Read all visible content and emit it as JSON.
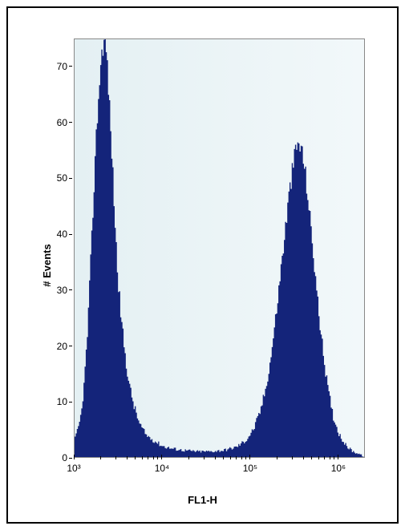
{
  "histogram_chart": {
    "type": "histogram",
    "xaxis": {
      "label": "FL1-H",
      "scale": "log",
      "lim": [
        1000,
        2000000
      ],
      "major_ticks": [
        1000,
        10000,
        100000,
        1000000
      ],
      "major_tick_labels": [
        "10³",
        "10⁴",
        "10⁵",
        "10⁶"
      ],
      "label_fontsize": 13,
      "tick_fontsize": 12
    },
    "yaxis": {
      "label": "# Events",
      "scale": "linear",
      "lim": [
        0,
        75
      ],
      "ticks": [
        0,
        10,
        20,
        30,
        40,
        50,
        60,
        70
      ],
      "tick_labels": [
        "0",
        "10",
        "20",
        "30",
        "40",
        "50",
        "60",
        "70"
      ],
      "label_fontsize": 13,
      "tick_fontsize": 12
    },
    "series": {
      "fill_color": "#14247a",
      "stroke_color": "#14247a",
      "bins": [
        {
          "x": 1000,
          "y": 3
        },
        {
          "x": 1100,
          "y": 5
        },
        {
          "x": 1200,
          "y": 8
        },
        {
          "x": 1300,
          "y": 14
        },
        {
          "x": 1400,
          "y": 22
        },
        {
          "x": 1500,
          "y": 32
        },
        {
          "x": 1600,
          "y": 42
        },
        {
          "x": 1700,
          "y": 52
        },
        {
          "x": 1800,
          "y": 60
        },
        {
          "x": 1900,
          "y": 66
        },
        {
          "x": 2000,
          "y": 71
        },
        {
          "x": 2100,
          "y": 74
        },
        {
          "x": 2200,
          "y": 75
        },
        {
          "x": 2300,
          "y": 73
        },
        {
          "x": 2400,
          "y": 69
        },
        {
          "x": 2500,
          "y": 63
        },
        {
          "x": 2700,
          "y": 53
        },
        {
          "x": 2900,
          "y": 42
        },
        {
          "x": 3100,
          "y": 33
        },
        {
          "x": 3400,
          "y": 25
        },
        {
          "x": 3800,
          "y": 18
        },
        {
          "x": 4200,
          "y": 13
        },
        {
          "x": 4800,
          "y": 9
        },
        {
          "x": 5500,
          "y": 6
        },
        {
          "x": 6500,
          "y": 4
        },
        {
          "x": 8000,
          "y": 3
        },
        {
          "x": 10000,
          "y": 2
        },
        {
          "x": 13000,
          "y": 1.5
        },
        {
          "x": 18000,
          "y": 1.2
        },
        {
          "x": 25000,
          "y": 1
        },
        {
          "x": 35000,
          "y": 1
        },
        {
          "x": 50000,
          "y": 1.2
        },
        {
          "x": 70000,
          "y": 1.8
        },
        {
          "x": 90000,
          "y": 3
        },
        {
          "x": 110000,
          "y": 5
        },
        {
          "x": 130000,
          "y": 8
        },
        {
          "x": 150000,
          "y": 12
        },
        {
          "x": 170000,
          "y": 17
        },
        {
          "x": 190000,
          "y": 23
        },
        {
          "x": 210000,
          "y": 29
        },
        {
          "x": 230000,
          "y": 35
        },
        {
          "x": 250000,
          "y": 40
        },
        {
          "x": 270000,
          "y": 45
        },
        {
          "x": 290000,
          "y": 49
        },
        {
          "x": 310000,
          "y": 52
        },
        {
          "x": 330000,
          "y": 55
        },
        {
          "x": 350000,
          "y": 56
        },
        {
          "x": 370000,
          "y": 56
        },
        {
          "x": 390000,
          "y": 55
        },
        {
          "x": 420000,
          "y": 52
        },
        {
          "x": 450000,
          "y": 48
        },
        {
          "x": 490000,
          "y": 42
        },
        {
          "x": 540000,
          "y": 35
        },
        {
          "x": 600000,
          "y": 27
        },
        {
          "x": 680000,
          "y": 19
        },
        {
          "x": 780000,
          "y": 12
        },
        {
          "x": 900000,
          "y": 7
        },
        {
          "x": 1050000,
          "y": 4
        },
        {
          "x": 1250000,
          "y": 2
        },
        {
          "x": 1500000,
          "y": 1
        },
        {
          "x": 1800000,
          "y": 0.5
        },
        {
          "x": 2000000,
          "y": 0
        }
      ],
      "noise_amplitude": 4
    },
    "background_gradient": {
      "from": "#e4f0f3",
      "to": "#f2f8fa"
    },
    "border_color": "#888888",
    "outer_border_color": "#000000"
  }
}
